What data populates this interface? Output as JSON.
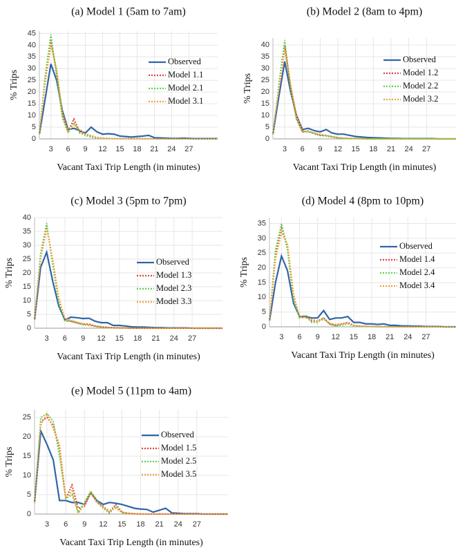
{
  "chart_data": [
    {
      "type": "line",
      "title": "(a) Model 1 (5am to 7am)",
      "x_label": "Vacant Taxi Trip Length (in minutes)",
      "y_label": "% Trips",
      "x": [
        1,
        2,
        3,
        4,
        5,
        6,
        7,
        8,
        9,
        10,
        11,
        12,
        13,
        14,
        15,
        16,
        17,
        18,
        19,
        20,
        21,
        22,
        23,
        24,
        25,
        26,
        27,
        28,
        29,
        30,
        31,
        32
      ],
      "xlim": [
        1,
        32
      ],
      "xticks": [
        3,
        6,
        9,
        12,
        15,
        18,
        21,
        24,
        27
      ],
      "ylim": [
        0,
        46
      ],
      "yticks": [
        0,
        5,
        10,
        15,
        20,
        25,
        30,
        35,
        40,
        45
      ],
      "grid": true,
      "series": [
        {
          "name": "Observed",
          "color": "#2f64a8",
          "style": "solid",
          "values": [
            2,
            17,
            32,
            25,
            12,
            4,
            4.5,
            3.5,
            2.5,
            5,
            3,
            2,
            2.2,
            2,
            1.2,
            1,
            0.8,
            1,
            1.2,
            1.5,
            0.5,
            0.4,
            0.3,
            0.2,
            0.2,
            0.3,
            0.2,
            0.1,
            0.1,
            0.1,
            0.1,
            0.1
          ]
        },
        {
          "name": "Model 1.1",
          "color": "#e0403a",
          "style": "dotted",
          "values": [
            2,
            25,
            42,
            28,
            10,
            3,
            8.5,
            3,
            2,
            1,
            0.5,
            0.3,
            0.2,
            0.1,
            0.1,
            0.1,
            0.1,
            0.1,
            0.1,
            0.1,
            0,
            0,
            0,
            0,
            0,
            0,
            0,
            0,
            0,
            0,
            0,
            0
          ]
        },
        {
          "name": "Model 2.1",
          "color": "#5ad14a",
          "style": "dotted",
          "values": [
            2,
            27,
            44.5,
            27,
            9,
            2.5,
            7,
            2.5,
            1.5,
            0.8,
            0.4,
            0.2,
            0.1,
            0.1,
            0.1,
            0.1,
            0,
            0,
            0,
            0,
            0,
            0,
            0,
            0,
            0,
            0,
            0,
            0,
            0,
            0,
            0,
            0
          ]
        },
        {
          "name": "Model 3.1",
          "color": "#f0a030",
          "style": "dotted",
          "values": [
            2,
            24,
            40,
            30,
            11,
            3.5,
            6,
            4,
            2,
            1.5,
            0.6,
            0.3,
            0.2,
            0.1,
            0.1,
            0.1,
            0,
            0,
            0,
            0,
            0,
            0,
            0,
            0,
            0,
            0,
            0,
            0,
            0,
            0,
            0,
            0
          ]
        }
      ]
    },
    {
      "type": "line",
      "title": "(b) Model 2 (8am to 4pm)",
      "x_label": "Vacant Taxi Trip Length (in minutes)",
      "y_label": "% Trips",
      "x": [
        1,
        2,
        3,
        4,
        5,
        6,
        7,
        8,
        9,
        10,
        11,
        12,
        13,
        14,
        15,
        16,
        17,
        18,
        19,
        20,
        21,
        22,
        23,
        24,
        25,
        26,
        27,
        28,
        29,
        30,
        31,
        32
      ],
      "xlim": [
        1,
        32
      ],
      "xticks": [
        3,
        6,
        9,
        12,
        15,
        18,
        21,
        24,
        27
      ],
      "ylim": [
        0,
        43
      ],
      "yticks": [
        0,
        5,
        10,
        15,
        20,
        25,
        30,
        35,
        40
      ],
      "grid": true,
      "series": [
        {
          "name": "Observed",
          "color": "#2f64a8",
          "style": "solid",
          "values": [
            2,
            18,
            33,
            20,
            10,
            4,
            4.5,
            3.5,
            3,
            4,
            2.5,
            2,
            2,
            1.5,
            1,
            0.8,
            0.6,
            0.5,
            0.4,
            0.3,
            0.2,
            0.2,
            0.1,
            0.1,
            0.1,
            0.1,
            0.1,
            0.1,
            0,
            0,
            0,
            0
          ]
        },
        {
          "name": "Model 1.2",
          "color": "#e0403a",
          "style": "dotted",
          "values": [
            2,
            22,
            40,
            22,
            9,
            3,
            3,
            2.5,
            1.5,
            1.5,
            1,
            0.5,
            0.3,
            0.2,
            0.1,
            0.1,
            0,
            0,
            0,
            0,
            0,
            0,
            0,
            0,
            0,
            0,
            0,
            0,
            0,
            0,
            0,
            0
          ]
        },
        {
          "name": "Model 2.2",
          "color": "#5ad14a",
          "style": "dotted",
          "values": [
            2,
            23,
            42,
            21,
            8,
            3,
            3.5,
            2,
            1.5,
            1.2,
            0.8,
            0.4,
            0.2,
            0.1,
            0.1,
            0.1,
            0,
            0,
            0,
            0,
            0,
            0,
            0,
            0,
            0,
            0,
            0,
            0,
            0,
            0,
            0,
            0
          ]
        },
        {
          "name": "Model 3.2",
          "color": "#f0a030",
          "style": "dotted",
          "values": [
            2,
            21,
            38,
            23,
            10,
            3.5,
            3,
            2.5,
            2,
            1.5,
            1,
            0.5,
            0.3,
            0.2,
            0.1,
            0.1,
            0,
            0,
            0,
            0,
            0,
            0,
            0,
            0,
            0,
            0,
            0,
            0,
            0,
            0,
            0,
            0
          ]
        }
      ]
    },
    {
      "type": "line",
      "title": "(c) Model 3 (5pm to 7pm)",
      "x_label": "Vacant Taxi Trip Length (in minutes)",
      "y_label": "% Trips",
      "x": [
        1,
        2,
        3,
        4,
        5,
        6,
        7,
        8,
        9,
        10,
        11,
        12,
        13,
        14,
        15,
        16,
        17,
        18,
        19,
        20,
        21,
        22,
        23,
        24,
        25,
        26,
        27,
        28,
        29,
        30,
        31,
        32
      ],
      "xlim": [
        1,
        32
      ],
      "xticks": [
        3,
        6,
        9,
        12,
        15,
        18,
        21,
        24,
        27
      ],
      "ylim": [
        0,
        40
      ],
      "yticks": [
        0,
        5,
        10,
        15,
        20,
        25,
        30,
        35,
        40
      ],
      "grid": true,
      "series": [
        {
          "name": "Observed",
          "color": "#2f64a8",
          "style": "solid",
          "values": [
            3,
            22,
            27.5,
            17,
            8,
            3,
            4,
            3.8,
            3.5,
            3.6,
            2.5,
            2,
            2,
            1,
            1,
            0.8,
            0.5,
            0.4,
            0.4,
            0.3,
            0.2,
            0.2,
            0.1,
            0.1,
            0.1,
            0.1,
            0,
            0,
            0,
            0,
            0,
            0
          ]
        },
        {
          "name": "Model 1.3",
          "color": "#e0403a",
          "style": "dotted",
          "values": [
            3,
            26,
            37,
            24,
            10,
            3,
            2.5,
            2,
            1.5,
            1.5,
            0.8,
            0.5,
            0.3,
            0.2,
            0.1,
            0.1,
            0,
            0,
            0,
            0,
            0,
            0,
            0,
            0,
            0,
            0,
            0,
            0,
            0,
            0,
            0,
            0
          ]
        },
        {
          "name": "Model 2.3",
          "color": "#5ad14a",
          "style": "dotted",
          "values": [
            3,
            27,
            38,
            23,
            9,
            2.5,
            2.5,
            1.8,
            1.2,
            1,
            0.6,
            0.3,
            0.2,
            0.1,
            0.1,
            0.1,
            0,
            0,
            0,
            0,
            0,
            0,
            0,
            0,
            0,
            0,
            0,
            0,
            0,
            0,
            0,
            0
          ]
        },
        {
          "name": "Model 3.3",
          "color": "#f0a030",
          "style": "dotted",
          "values": [
            3,
            25,
            36,
            25,
            11,
            3.5,
            3,
            2.2,
            1.5,
            1.2,
            0.8,
            0.4,
            0.2,
            0.1,
            0.1,
            0.1,
            0,
            0,
            0,
            0,
            0,
            0,
            0,
            0,
            0,
            0,
            0,
            0,
            0,
            0,
            0,
            0
          ]
        }
      ]
    },
    {
      "type": "line",
      "title": "(d) Model 4 (8pm to 10pm)",
      "x_label": "Vacant Taxi Trip Length (in minutes)",
      "y_label": "% Trips",
      "x": [
        1,
        2,
        3,
        4,
        5,
        6,
        7,
        8,
        9,
        10,
        11,
        12,
        13,
        14,
        15,
        16,
        17,
        18,
        19,
        20,
        21,
        22,
        23,
        24,
        25,
        26,
        27,
        28,
        29,
        30,
        31,
        32
      ],
      "xlim": [
        1,
        32
      ],
      "xticks": [
        3,
        6,
        9,
        12,
        15,
        18,
        21,
        24,
        27
      ],
      "ylim": [
        0,
        37
      ],
      "yticks": [
        0,
        5,
        10,
        15,
        20,
        25,
        30,
        35
      ],
      "grid": true,
      "series": [
        {
          "name": "Observed",
          "color": "#2f64a8",
          "style": "solid",
          "values": [
            2,
            15,
            24,
            19,
            8,
            3.5,
            3.5,
            3,
            3,
            5.5,
            2.5,
            3,
            3,
            3.5,
            1.5,
            1.5,
            1,
            1,
            0.8,
            1,
            0.5,
            0.5,
            0.3,
            0.3,
            0.2,
            0.2,
            0.1,
            0.1,
            0.1,
            0,
            0,
            0
          ]
        },
        {
          "name": "Model 1.4",
          "color": "#e0403a",
          "style": "dotted",
          "values": [
            2,
            25,
            34,
            27,
            10,
            3,
            3.5,
            2,
            2,
            3,
            1,
            0.5,
            1,
            1.5,
            0.5,
            0.3,
            0.2,
            0.1,
            0.1,
            0.1,
            0,
            0,
            0,
            0,
            0,
            0,
            0,
            0,
            0,
            0,
            0,
            0
          ]
        },
        {
          "name": "Model 2.4",
          "color": "#5ad14a",
          "style": "dotted",
          "values": [
            2,
            26,
            35,
            26,
            9,
            3,
            4,
            1.5,
            1.5,
            3,
            0.8,
            0.3,
            0.5,
            1,
            0.3,
            0.2,
            0.1,
            0.1,
            0,
            0,
            0,
            0,
            0,
            0,
            0,
            0,
            0,
            0,
            0,
            0,
            0,
            0
          ]
        },
        {
          "name": "Model 3.4",
          "color": "#f0a030",
          "style": "dotted",
          "values": [
            2,
            23,
            32,
            28,
            11,
            3.5,
            3,
            2.5,
            2,
            2.5,
            1.2,
            0.8,
            1,
            1.2,
            0.5,
            0.3,
            0.2,
            0.1,
            0.1,
            0,
            0,
            0,
            0,
            0,
            0,
            0,
            0,
            0,
            0,
            0,
            0,
            0
          ]
        }
      ]
    },
    {
      "type": "line",
      "title": "(e) Model 5 (11pm to 4am)",
      "x_label": "Vacant Taxi Trip Length (in minutes)",
      "y_label": "% Trips",
      "x": [
        1,
        2,
        3,
        4,
        5,
        6,
        7,
        8,
        9,
        10,
        11,
        12,
        13,
        14,
        15,
        16,
        17,
        18,
        19,
        20,
        21,
        22,
        23,
        24,
        25,
        26,
        27,
        28,
        29,
        30,
        31,
        32
      ],
      "xlim": [
        1,
        32
      ],
      "xticks": [
        3,
        6,
        9,
        12,
        15,
        18,
        21,
        24,
        27
      ],
      "ylim": [
        0,
        27
      ],
      "yticks": [
        0,
        5,
        10,
        15,
        20,
        25
      ],
      "grid": true,
      "series": [
        {
          "name": "Observed",
          "color": "#2f64a8",
          "style": "solid",
          "values": [
            3,
            21.5,
            18,
            14,
            3.5,
            3.5,
            3,
            3,
            2.5,
            5.5,
            3.5,
            2.5,
            3,
            2.8,
            2.5,
            2,
            1.5,
            1.3,
            1.2,
            0.5,
            1,
            1.5,
            0.3,
            0.2,
            0.1,
            0.1,
            0.1,
            0,
            0,
            0,
            0,
            0
          ]
        },
        {
          "name": "Model 1.5",
          "color": "#e0403a",
          "style": "dotted",
          "values": [
            3,
            24,
            25,
            23,
            17,
            4,
            7.5,
            1.5,
            2,
            5.5,
            3,
            2,
            0.5,
            2.5,
            0.5,
            0.2,
            0.1,
            0,
            0,
            0,
            0,
            0,
            0,
            0,
            0,
            0,
            0,
            0,
            0,
            0,
            0,
            0
          ]
        },
        {
          "name": "Model 2.5",
          "color": "#5ad14a",
          "style": "dotted",
          "values": [
            3,
            25,
            26,
            24,
            15,
            4,
            5,
            0.5,
            3,
            6,
            3.5,
            1.5,
            0.2,
            2,
            0.3,
            0.1,
            0,
            0,
            0,
            0,
            0,
            0,
            0,
            0,
            0,
            0,
            0,
            0,
            0,
            0,
            0,
            0
          ]
        },
        {
          "name": "Model 3.5",
          "color": "#f0a030",
          "style": "dotted",
          "values": [
            3,
            23,
            26,
            22,
            18,
            4,
            6,
            0.2,
            2.5,
            5.5,
            3,
            1.5,
            1,
            1.5,
            0.5,
            0.2,
            0.1,
            0,
            0,
            0,
            0,
            0,
            0,
            0,
            0,
            0,
            0,
            0,
            0,
            0,
            0,
            0
          ]
        }
      ]
    }
  ]
}
